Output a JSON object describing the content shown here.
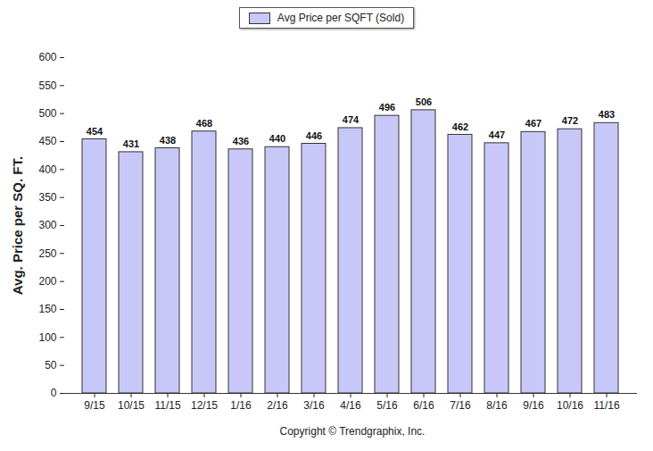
{
  "chart_data": {
    "type": "bar",
    "categories": [
      "9/15",
      "10/15",
      "11/15",
      "12/15",
      "1/16",
      "2/16",
      "3/16",
      "4/16",
      "5/16",
      "6/16",
      "7/16",
      "8/16",
      "9/16",
      "10/16",
      "11/16"
    ],
    "series": [
      {
        "name": "Avg Price per SQFT (Sold)",
        "color": "#c8c8f8",
        "values": [
          454,
          431,
          438,
          468,
          436,
          440,
          446,
          474,
          496,
          506,
          462,
          447,
          467,
          472,
          483
        ]
      }
    ],
    "y_label": "Avg. Price per SQ. FT.",
    "caption": "Copyright © Trendgraphix, Inc.",
    "ylim": [
      0,
      600
    ],
    "yticks": [
      0,
      50,
      100,
      150,
      200,
      250,
      300,
      350,
      400,
      450,
      500,
      550,
      600
    ],
    "grid": false,
    "legend": "top",
    "data_labels": true
  }
}
